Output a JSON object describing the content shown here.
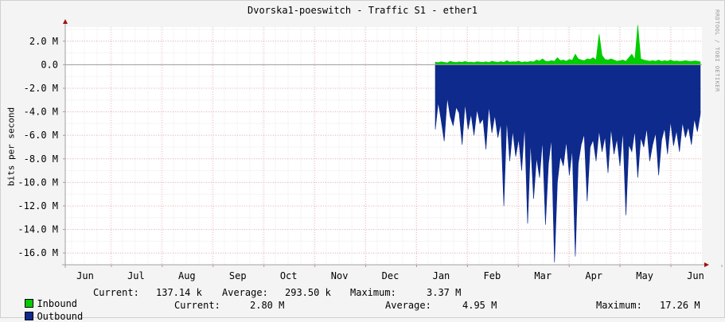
{
  "chart_data": {
    "type": "area",
    "title": "Dvorska1-poeswitch - Traffic S1 - ether1",
    "ylabel": "bits per second",
    "watermark": "RRDTOOL / TOBI OETIKER",
    "ylim": [
      -17,
      3.2
    ],
    "yticks": [
      "2.0 M",
      "0.0",
      "-2.0 M",
      "-4.0 M",
      "-6.0 M",
      "-8.0 M",
      "-10.0 M",
      "-12.0 M",
      "-14.0 M",
      "-16.0 M"
    ],
    "ytick_values": [
      2,
      0,
      -2,
      -4,
      -6,
      -8,
      -10,
      -12,
      -14,
      -16
    ],
    "months": [
      "Jun",
      "Jul",
      "Aug",
      "Sep",
      "Oct",
      "Nov",
      "Dec",
      "Jan",
      "Feb",
      "Mar",
      "Apr",
      "May",
      "Jun"
    ],
    "grid": true,
    "series": [
      {
        "name": "Inbound",
        "color": "#00cc00",
        "unit": "Mbps",
        "x_start": "Jan",
        "values": [
          0.22,
          0.18,
          0.25,
          0.2,
          0.15,
          0.3,
          0.22,
          0.19,
          0.24,
          0.21,
          0.28,
          0.2,
          0.23,
          0.18,
          0.26,
          0.22,
          0.2,
          0.25,
          0.19,
          0.3,
          0.24,
          0.21,
          0.27,
          0.2,
          0.35,
          0.22,
          0.26,
          0.24,
          0.3,
          0.2,
          0.25,
          0.22,
          0.28,
          0.24,
          0.4,
          0.32,
          0.5,
          0.3,
          0.28,
          0.35,
          0.3,
          0.6,
          0.35,
          0.4,
          0.3,
          0.45,
          0.38,
          0.9,
          0.5,
          0.4,
          0.35,
          0.5,
          0.45,
          0.6,
          0.4,
          2.6,
          0.8,
          0.45,
          0.4,
          0.5,
          0.4,
          0.3,
          0.35,
          0.4,
          0.3,
          0.6,
          0.9,
          0.45,
          3.37,
          0.5,
          0.4,
          0.35,
          0.3,
          0.35,
          0.3,
          0.4,
          0.28,
          0.35,
          0.3,
          0.4,
          0.3,
          0.32,
          0.28,
          0.3,
          0.35,
          0.3,
          0.28,
          0.32,
          0.3,
          0.25
        ]
      },
      {
        "name": "Outbound",
        "color": "#0d2a8c",
        "unit": "Mbps",
        "x_start": "Jan",
        "values": [
          -5.5,
          -3.2,
          -4.8,
          -6.5,
          -2.8,
          -4.4,
          -5.2,
          -3.6,
          -4.1,
          -6.8,
          -3.3,
          -5.5,
          -4.2,
          -6.0,
          -3.8,
          -5.0,
          -4.6,
          -7.2,
          -3.5,
          -5.8,
          -4.3,
          -6.2,
          -5.0,
          -12.0,
          -4.7,
          -8.2,
          -5.6,
          -7.8,
          -6.3,
          -9.0,
          -5.2,
          -13.5,
          -6.6,
          -11.4,
          -7.9,
          -9.6,
          -6.4,
          -13.6,
          -8.4,
          -6.3,
          -16.8,
          -10.0,
          -7.8,
          -8.6,
          -6.5,
          -9.4,
          -7.2,
          -16.3,
          -8.4,
          -6.8,
          -5.9,
          -11.6,
          -7.0,
          -6.4,
          -8.2,
          -5.6,
          -7.4,
          -6.1,
          -9.2,
          -5.4,
          -7.6,
          -6.3,
          -8.6,
          -5.6,
          -12.8,
          -6.8,
          -7.4,
          -5.6,
          -9.6,
          -6.2,
          -7.0,
          -5.4,
          -8.2,
          -6.8,
          -5.8,
          -9.4,
          -6.4,
          -5.4,
          -7.6,
          -4.8,
          -6.9,
          -5.6,
          -7.4,
          -4.9,
          -6.2,
          -5.3,
          -6.8,
          -4.6,
          -5.7,
          -4.2
        ]
      }
    ]
  },
  "legend": [
    {
      "name": "Inbound",
      "color": "#00cc00",
      "current_label": "Current:",
      "current": "137.14 k",
      "average_label": "Average:",
      "average": "293.50 k",
      "maximum_label": "Maximum:",
      "maximum": "3.37 M"
    },
    {
      "name": "Outbound",
      "color": "#0d2a8c",
      "current_label": "Current:",
      "current": "2.80 M",
      "average_label": "Average:",
      "average": "4.95 M",
      "maximum_label": "Maximum:",
      "maximum": "17.26 M"
    }
  ]
}
